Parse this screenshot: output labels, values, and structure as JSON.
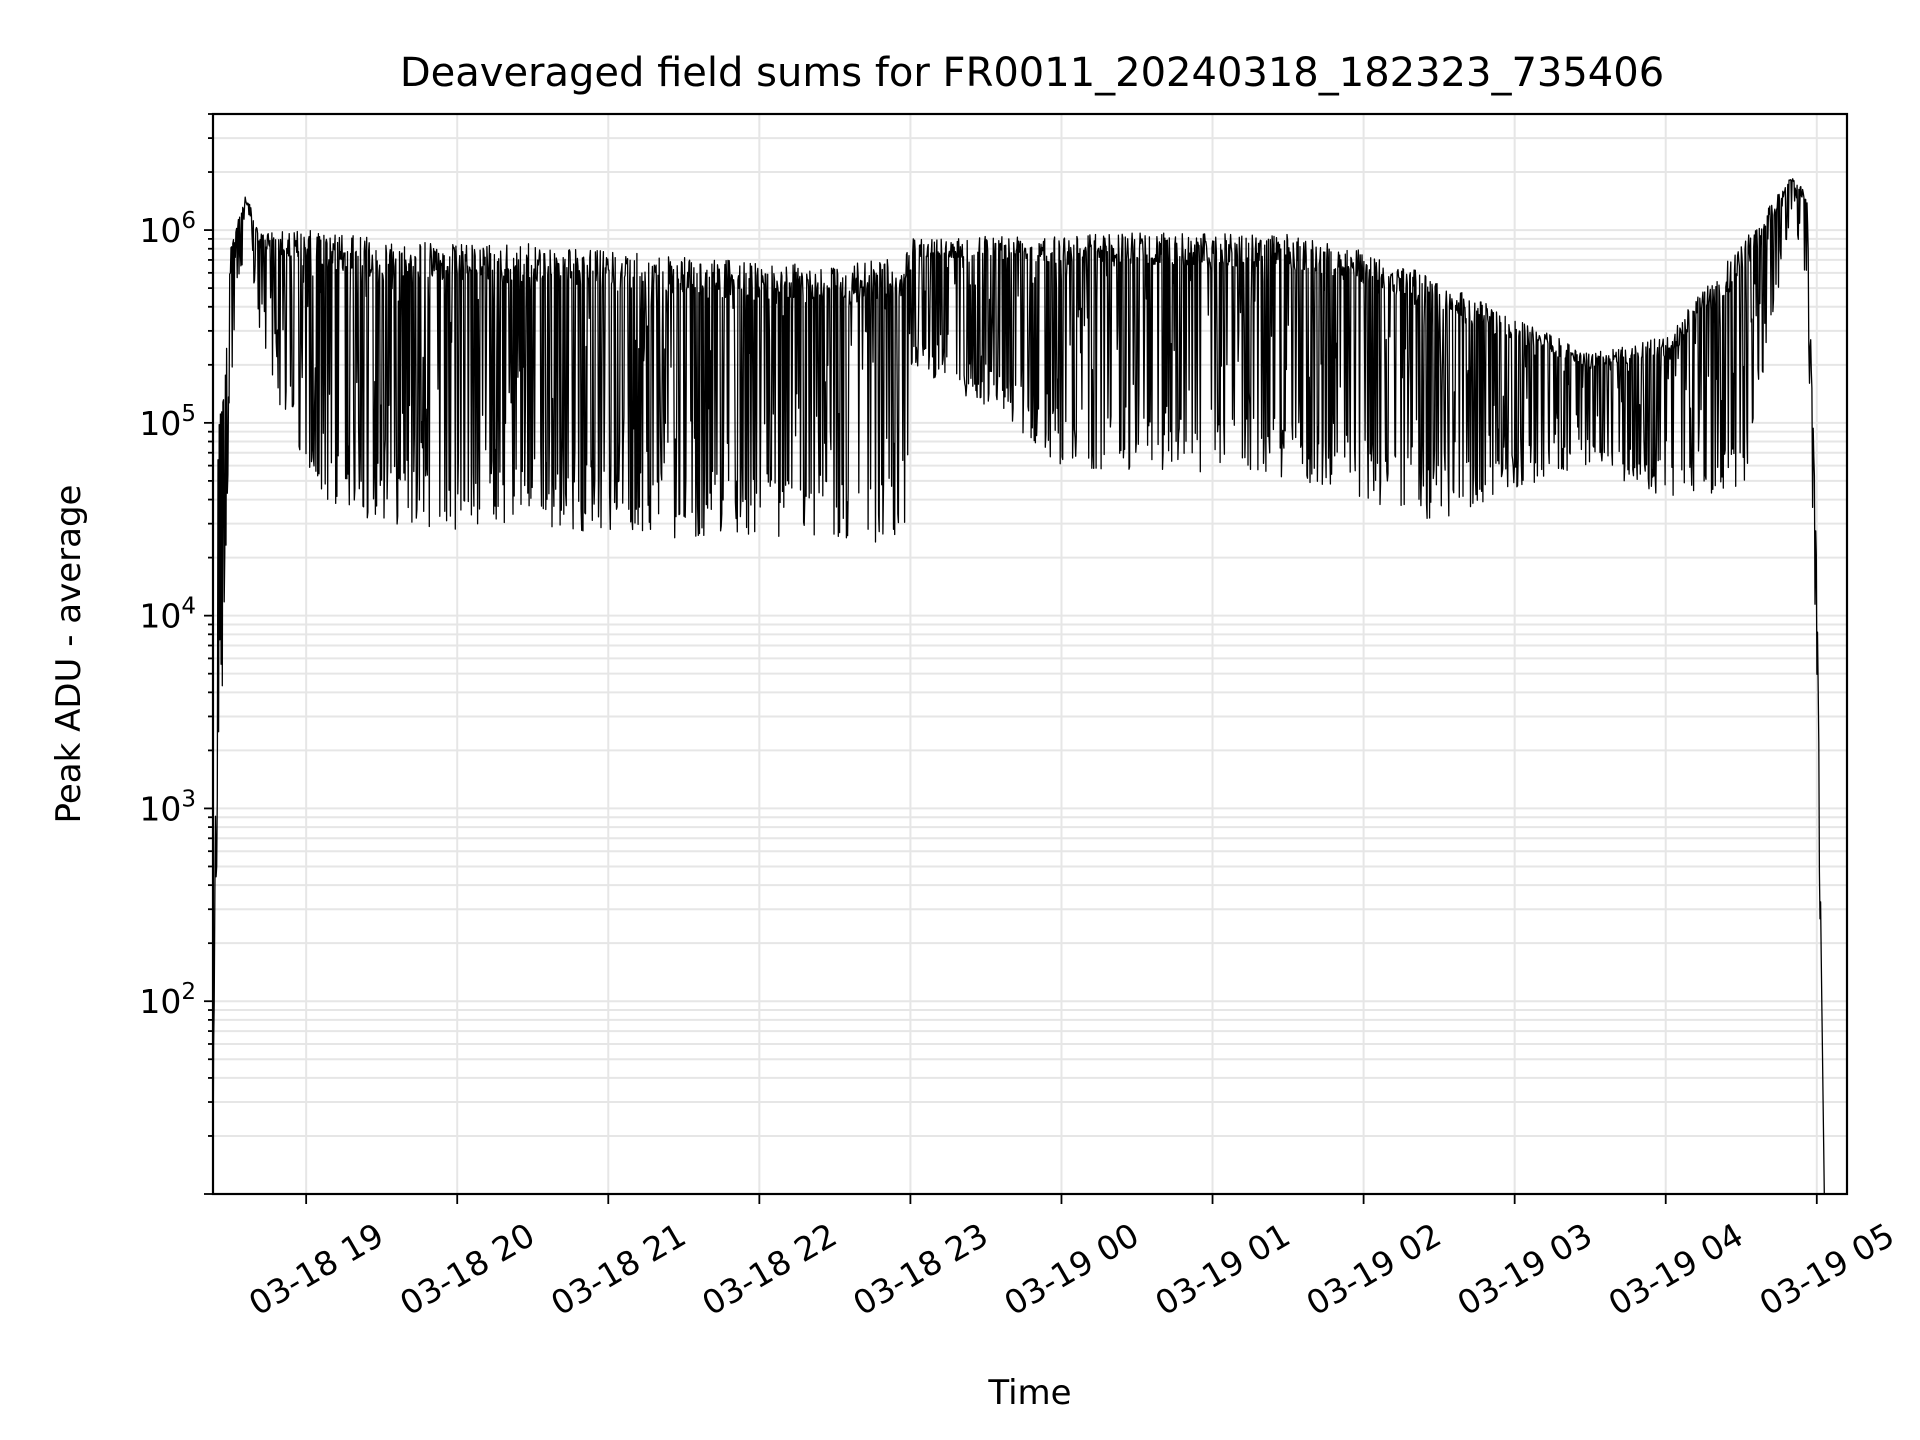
{
  "chart_data": {
    "type": "line",
    "title": "Deaveraged field sums for FR0011_20240318_182323_735406",
    "xlabel": "Time",
    "ylabel": "Peak ADU - average",
    "x_tick_labels": [
      "03-18 19",
      "03-18 20",
      "03-18 21",
      "03-18 22",
      "03-18 23",
      "03-19 00",
      "03-19 01",
      "03-19 02",
      "03-19 03",
      "03-19 04",
      "03-19 05"
    ],
    "y_tick_labels": [
      {
        "base": "10",
        "exp": "2",
        "value": 100
      },
      {
        "base": "10",
        "exp": "3",
        "value": 1000
      },
      {
        "base": "10",
        "exp": "4",
        "value": 10000
      },
      {
        "base": "10",
        "exp": "5",
        "value": 100000
      },
      {
        "base": "10",
        "exp": "6",
        "value": 1000000
      }
    ],
    "y_scale": "log",
    "ylim": [
      10,
      4000000
    ],
    "xlim": [
      "2024-03-18 18:23",
      "2024-03-19 05:12"
    ],
    "grid": true,
    "line_color": "#000000",
    "grid_color": "#e6e6e6",
    "series": [
      {
        "x": [
          "2024-03-18 18:23",
          "2024-03-18 18:25",
          "2024-03-18 18:27",
          "2024-03-18 18:30",
          "2024-03-18 18:33",
          "2024-03-18 18:36",
          "2024-03-18 18:39",
          "2024-03-18 18:42",
          "2024-03-18 18:45",
          "2024-03-18 19:00",
          "2024-03-18 19:30",
          "2024-03-18 20:00",
          "2024-03-18 20:30",
          "2024-03-18 21:00",
          "2024-03-18 21:30",
          "2024-03-18 22:00",
          "2024-03-18 22:30",
          "2024-03-18 22:58",
          "2024-03-18 23:00",
          "2024-03-18 23:30",
          "2024-03-19 00:00",
          "2024-03-19 00:30",
          "2024-03-19 01:00",
          "2024-03-19 01:30",
          "2024-03-19 02:00",
          "2024-03-19 02:30",
          "2024-03-19 03:00",
          "2024-03-19 03:30",
          "2024-03-19 04:00",
          "2024-03-19 04:30",
          "2024-03-19 04:50",
          "2024-03-19 04:56",
          "2024-03-19 05:00",
          "2024-03-19 05:02",
          "2024-03-19 05:03"
        ],
        "upper": [
          20,
          130000,
          150000,
          800000,
          1200000,
          1550000,
          1200000,
          950000,
          1000000,
          1000000,
          900000,
          850000,
          850000,
          780000,
          720000,
          680000,
          660000,
          720000,
          900000,
          950000,
          970000,
          970000,
          970000,
          950000,
          800000,
          550000,
          350000,
          230000,
          280000,
          850000,
          1900000,
          1600000,
          20000,
          100,
          10
        ],
        "lower": [
          10,
          700,
          5000,
          150000,
          500000,
          700000,
          500000,
          250000,
          200000,
          40000,
          30000,
          28000,
          28000,
          27000,
          25000,
          25000,
          24000,
          23000,
          200000,
          120000,
          60000,
          55000,
          55000,
          50000,
          40000,
          30000,
          45000,
          60000,
          40000,
          40000,
          1200000,
          500000,
          5000,
          50,
          10
        ]
      }
    ]
  }
}
